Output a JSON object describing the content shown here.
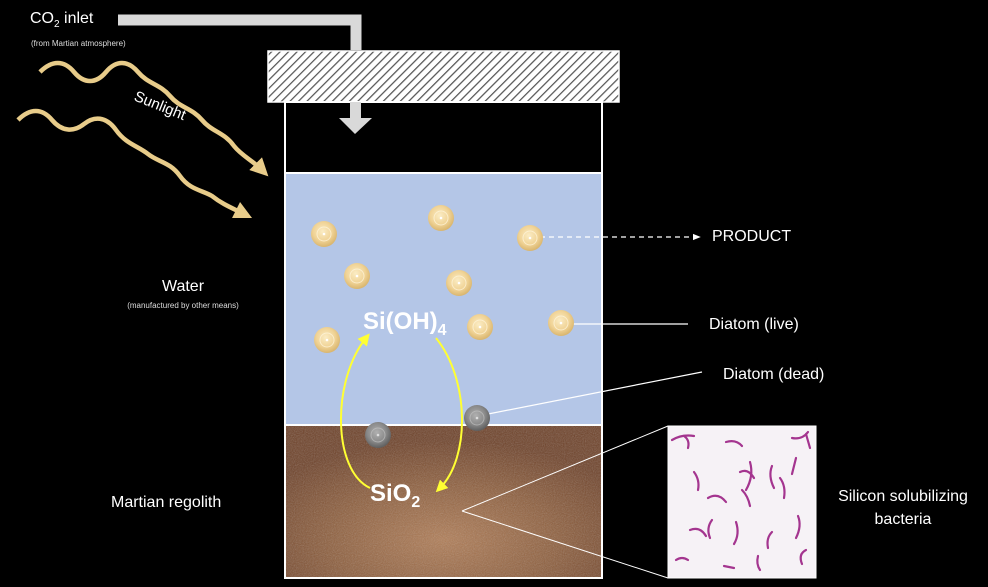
{
  "labels": {
    "co2_inlet": {
      "main": "CO",
      "sub": "2",
      "rest": " inlet",
      "note": "(from Martian atmosphere)"
    },
    "sunlight": "Sunlight",
    "water": {
      "main": "Water",
      "note": "(manufactured by other means)"
    },
    "martian_regolith": "Martian regolith",
    "product": "PRODUCT",
    "diatom_live": "Diatom (live)",
    "diatom_dead": "Diatom (dead)",
    "bacteria": {
      "line1": "Silicon solubilizing",
      "line2": "bacteria"
    }
  },
  "chemistry": {
    "silicic_acid": {
      "main": "Si(OH)",
      "sub": "4"
    },
    "silica": {
      "main": "SiO",
      "sub": "2"
    }
  },
  "colors": {
    "water": "#b4c6e7",
    "soil": "#8a5a3a",
    "live_diatom": "#f3d9a0",
    "dead_diatom": "#8a8a8a",
    "cycle_arrow": "#ffff33",
    "sunlight": "#e8cc8a",
    "bacteria": "#a4358f"
  }
}
